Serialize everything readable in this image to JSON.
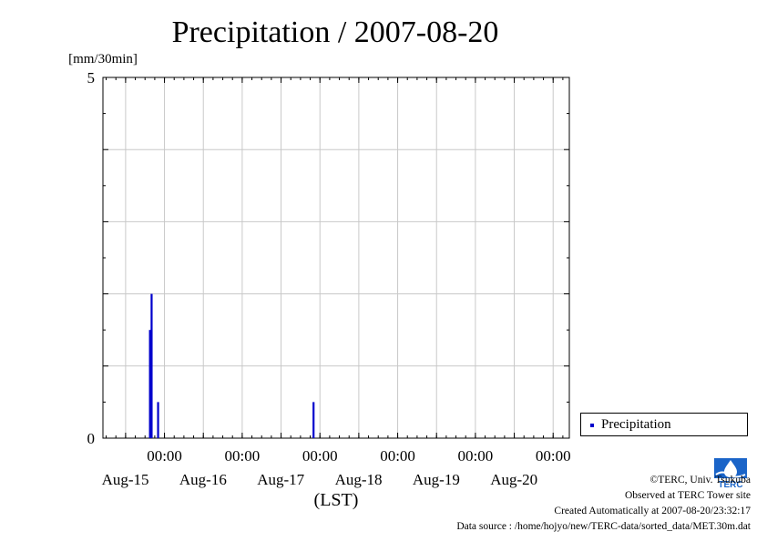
{
  "chart_data": {
    "type": "bar",
    "title": "Precipitation / 2007-08-20",
    "ylabel": "[mm/30min]",
    "xlabel": "(LST)",
    "ylim": [
      0,
      5
    ],
    "y_ticks": [
      0,
      5
    ],
    "xlim": [
      "2007-08-14 05:00",
      "2007-08-20 05:00"
    ],
    "x_tick_labels": [
      {
        "time": "00:00",
        "date": "Aug-15"
      },
      {
        "time": "00:00",
        "date": "Aug-16"
      },
      {
        "time": "00:00",
        "date": "Aug-17"
      },
      {
        "time": "00:00",
        "date": "Aug-18"
      },
      {
        "time": "00:00",
        "date": "Aug-19"
      },
      {
        "time": "00:00",
        "date": "Aug-20"
      }
    ],
    "grid": true,
    "legend_position": "bottom-right outside",
    "series": [
      {
        "name": "Precipitation",
        "color": "#0000cc",
        "points": [
          {
            "t": "2007-08-14 19:30",
            "value": 1.5
          },
          {
            "t": "2007-08-14 20:00",
            "value": 2.0
          },
          {
            "t": "2007-08-14 22:00",
            "value": 0.5
          },
          {
            "t": "2007-08-16 22:00",
            "value": 0.5
          }
        ]
      }
    ]
  },
  "footer": {
    "copyright": "©TERC, Univ. Tsukuba",
    "observed": "Observed at TERC Tower site",
    "created": "Created Automatically at 2007-08-20/23:32:17",
    "source": "Data source : /home/hojyo/new/TERC-data/sorted_data/MET.30m.dat"
  },
  "logo_text": "TERC"
}
